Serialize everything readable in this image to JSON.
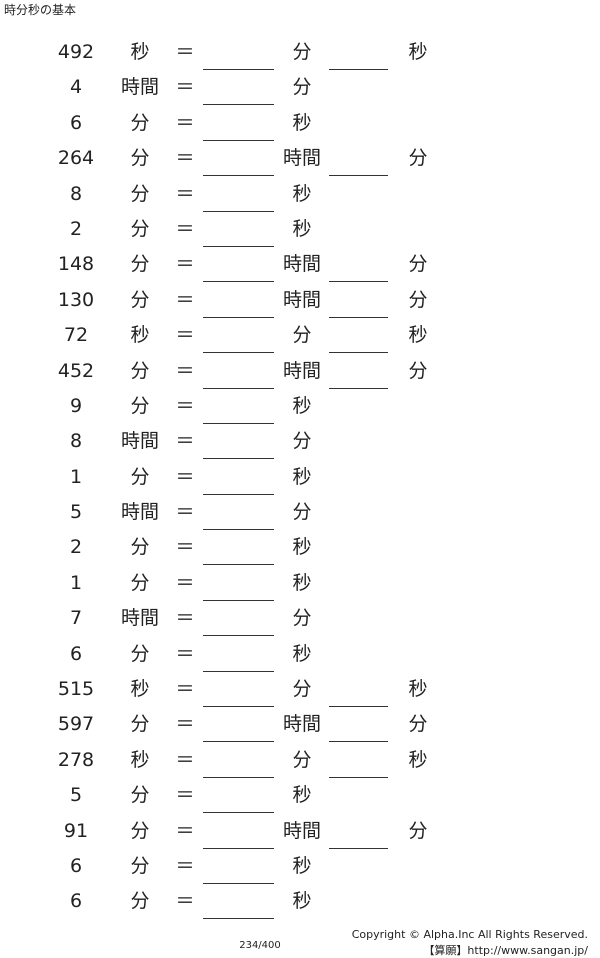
{
  "title": "時分秒の基本",
  "equals": "＝",
  "rows": [
    {
      "n": "492",
      "u1": "秒",
      "u2": "分",
      "u3": "秒",
      "b2": true
    },
    {
      "n": "4",
      "u1": "時間",
      "u2": "分",
      "u3": "",
      "b2": false
    },
    {
      "n": "6",
      "u1": "分",
      "u2": "秒",
      "u3": "",
      "b2": false
    },
    {
      "n": "264",
      "u1": "分",
      "u2": "時間",
      "u3": "分",
      "b2": true
    },
    {
      "n": "8",
      "u1": "分",
      "u2": "秒",
      "u3": "",
      "b2": false
    },
    {
      "n": "2",
      "u1": "分",
      "u2": "秒",
      "u3": "",
      "b2": false
    },
    {
      "n": "148",
      "u1": "分",
      "u2": "時間",
      "u3": "分",
      "b2": true
    },
    {
      "n": "130",
      "u1": "分",
      "u2": "時間",
      "u3": "分",
      "b2": true
    },
    {
      "n": "72",
      "u1": "秒",
      "u2": "分",
      "u3": "秒",
      "b2": true
    },
    {
      "n": "452",
      "u1": "分",
      "u2": "時間",
      "u3": "分",
      "b2": true
    },
    {
      "n": "9",
      "u1": "分",
      "u2": "秒",
      "u3": "",
      "b2": false
    },
    {
      "n": "8",
      "u1": "時間",
      "u2": "分",
      "u3": "",
      "b2": false
    },
    {
      "n": "1",
      "u1": "分",
      "u2": "秒",
      "u3": "",
      "b2": false
    },
    {
      "n": "5",
      "u1": "時間",
      "u2": "分",
      "u3": "",
      "b2": false
    },
    {
      "n": "2",
      "u1": "分",
      "u2": "秒",
      "u3": "",
      "b2": false
    },
    {
      "n": "1",
      "u1": "分",
      "u2": "秒",
      "u3": "",
      "b2": false
    },
    {
      "n": "7",
      "u1": "時間",
      "u2": "分",
      "u3": "",
      "b2": false
    },
    {
      "n": "6",
      "u1": "分",
      "u2": "秒",
      "u3": "",
      "b2": false
    },
    {
      "n": "515",
      "u1": "秒",
      "u2": "分",
      "u3": "秒",
      "b2": true
    },
    {
      "n": "597",
      "u1": "分",
      "u2": "時間",
      "u3": "分",
      "b2": true
    },
    {
      "n": "278",
      "u1": "秒",
      "u2": "分",
      "u3": "秒",
      "b2": true
    },
    {
      "n": "5",
      "u1": "分",
      "u2": "秒",
      "u3": "",
      "b2": false
    },
    {
      "n": "91",
      "u1": "分",
      "u2": "時間",
      "u3": "分",
      "b2": true
    },
    {
      "n": "6",
      "u1": "分",
      "u2": "秒",
      "u3": "",
      "b2": false
    },
    {
      "n": "6",
      "u1": "分",
      "u2": "秒",
      "u3": "",
      "b2": false
    }
  ],
  "footer": {
    "page": "234/400",
    "copyright": "Copyright © Alpha.Inc All Rights Reserved.",
    "url": "【算願】http://www.sangan.jp/"
  }
}
